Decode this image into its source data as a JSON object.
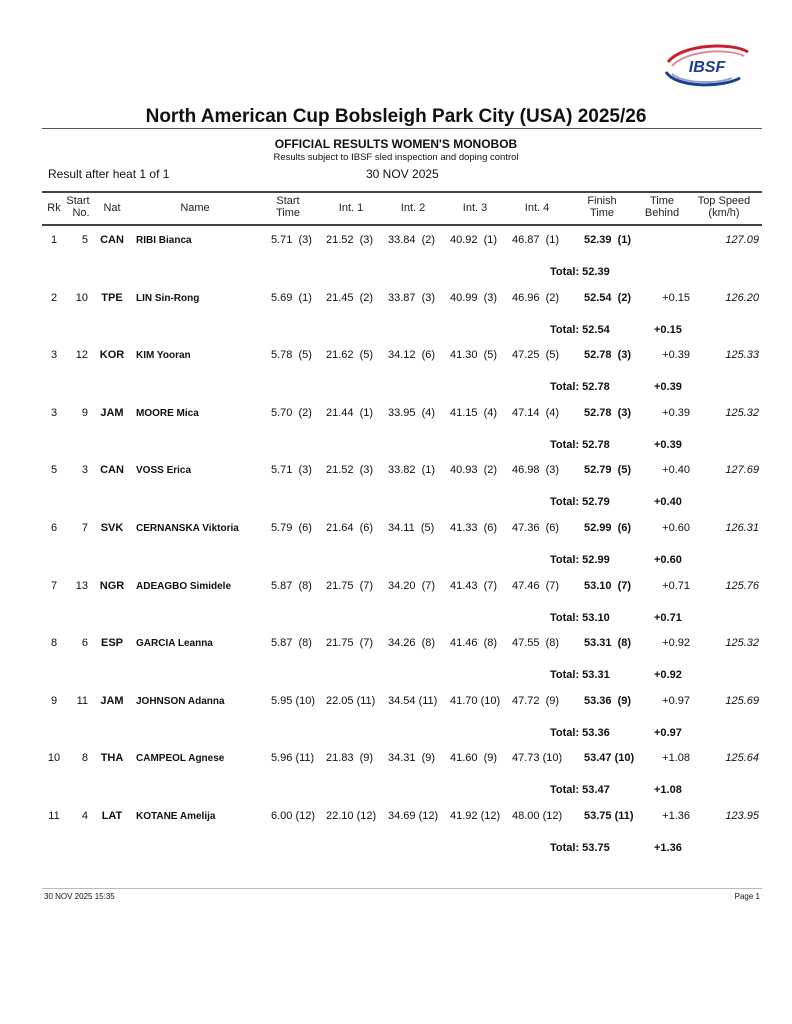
{
  "logo": {
    "text": "IBSF",
    "colors": {
      "red": "#c8202f",
      "blue": "#1d3f8f"
    }
  },
  "title": "North American Cup Bobsleigh Park City (USA) 2025/26",
  "subtitle": "OFFICIAL RESULTS WOMEN'S MONOBOB",
  "note": "Results subject to IBSF sled inspection and doping control",
  "heat_info": "Result after heat 1 of 1",
  "date": "30 NOV 2025",
  "columns": {
    "rk": "Rk",
    "start_no_1": "Start",
    "start_no_2": "No.",
    "nat": "Nat",
    "name": "Name",
    "start_time_1": "Start",
    "start_time_2": "Time",
    "int1": "Int. 1",
    "int2": "Int. 2",
    "int3": "Int. 3",
    "int4": "Int. 4",
    "finish_1": "Finish",
    "finish_2": "Time",
    "behind_1": "Time",
    "behind_2": "Behind",
    "speed_1": "Top Speed",
    "speed_2": "(km/h)"
  },
  "rows": [
    {
      "rk": "1",
      "no": "5",
      "nat": "CAN",
      "name": "RIBI Bianca",
      "start": "5.71  (3)",
      "int1": "21.52  (3)",
      "int2": "33.84  (2)",
      "int3": "40.92  (1)",
      "int4": "46.87  (1)",
      "finish": "52.39  (1)",
      "behind": "",
      "speed": "127.09",
      "total": "Total: 52.39",
      "total_behind": ""
    },
    {
      "rk": "2",
      "no": "10",
      "nat": "TPE",
      "name": "LIN Sin-Rong",
      "start": "5.69  (1)",
      "int1": "21.45  (2)",
      "int2": "33.87  (3)",
      "int3": "40.99  (3)",
      "int4": "46.96  (2)",
      "finish": "52.54  (2)",
      "behind": "+0.15",
      "speed": "126.20",
      "total": "Total: 52.54",
      "total_behind": "+0.15"
    },
    {
      "rk": "3",
      "no": "12",
      "nat": "KOR",
      "name": "KIM Yooran",
      "start": "5.78  (5)",
      "int1": "21.62  (5)",
      "int2": "34.12  (6)",
      "int3": "41.30  (5)",
      "int4": "47.25  (5)",
      "finish": "52.78  (3)",
      "behind": "+0.39",
      "speed": "125.33",
      "total": "Total: 52.78",
      "total_behind": "+0.39"
    },
    {
      "rk": "3",
      "no": "9",
      "nat": "JAM",
      "name": "MOORE Mica",
      "start": "5.70  (2)",
      "int1": "21.44  (1)",
      "int2": "33.95  (4)",
      "int3": "41.15  (4)",
      "int4": "47.14  (4)",
      "finish": "52.78  (3)",
      "behind": "+0.39",
      "speed": "125.32",
      "total": "Total: 52.78",
      "total_behind": "+0.39"
    },
    {
      "rk": "5",
      "no": "3",
      "nat": "CAN",
      "name": "VOSS Erica",
      "start": "5.71  (3)",
      "int1": "21.52  (3)",
      "int2": "33.82  (1)",
      "int3": "40.93  (2)",
      "int4": "46.98  (3)",
      "finish": "52.79  (5)",
      "behind": "+0.40",
      "speed": "127.69",
      "total": "Total: 52.79",
      "total_behind": "+0.40"
    },
    {
      "rk": "6",
      "no": "7",
      "nat": "SVK",
      "name": "CERNANSKA Viktoria",
      "start": "5.79  (6)",
      "int1": "21.64  (6)",
      "int2": "34.11  (5)",
      "int3": "41.33  (6)",
      "int4": "47.36  (6)",
      "finish": "52.99  (6)",
      "behind": "+0.60",
      "speed": "126.31",
      "total": "Total: 52.99",
      "total_behind": "+0.60"
    },
    {
      "rk": "7",
      "no": "13",
      "nat": "NGR",
      "name": "ADEAGBO Simidele",
      "start": "5.87  (8)",
      "int1": "21.75  (7)",
      "int2": "34.20  (7)",
      "int3": "41.43  (7)",
      "int4": "47.46  (7)",
      "finish": "53.10  (7)",
      "behind": "+0.71",
      "speed": "125.76",
      "total": "Total: 53.10",
      "total_behind": "+0.71"
    },
    {
      "rk": "8",
      "no": "6",
      "nat": "ESP",
      "name": "GARCIA Leanna",
      "start": "5.87  (8)",
      "int1": "21.75  (7)",
      "int2": "34.26  (8)",
      "int3": "41.46  (8)",
      "int4": "47.55  (8)",
      "finish": "53.31  (8)",
      "behind": "+0.92",
      "speed": "125.32",
      "total": "Total: 53.31",
      "total_behind": "+0.92"
    },
    {
      "rk": "9",
      "no": "11",
      "nat": "JAM",
      "name": "JOHNSON Adanna",
      "start": "5.95 (10)",
      "int1": "22.05 (11)",
      "int2": "34.54 (11)",
      "int3": "41.70 (10)",
      "int4": "47.72  (9)",
      "finish": "53.36  (9)",
      "behind": "+0.97",
      "speed": "125.69",
      "total": "Total: 53.36",
      "total_behind": "+0.97"
    },
    {
      "rk": "10",
      "no": "8",
      "nat": "THA",
      "name": "CAMPEOL Agnese",
      "start": "5.96 (11)",
      "int1": "21.83  (9)",
      "int2": "34.31  (9)",
      "int3": "41.60  (9)",
      "int4": "47.73 (10)",
      "finish": "53.47 (10)",
      "behind": "+1.08",
      "speed": "125.64",
      "total": "Total: 53.47",
      "total_behind": "+1.08"
    },
    {
      "rk": "11",
      "no": "4",
      "nat": "LAT",
      "name": "KOTANE Amelija",
      "start": "6.00 (12)",
      "int1": "22.10 (12)",
      "int2": "34.69 (12)",
      "int3": "41.92 (12)",
      "int4": "48.00 (12)",
      "finish": "53.75 (11)",
      "behind": "+1.36",
      "speed": "123.95",
      "total": "Total: 53.75",
      "total_behind": "+1.36"
    }
  ],
  "footer": {
    "timestamp": "30 NOV 2025 15:35",
    "page": "Page 1"
  }
}
